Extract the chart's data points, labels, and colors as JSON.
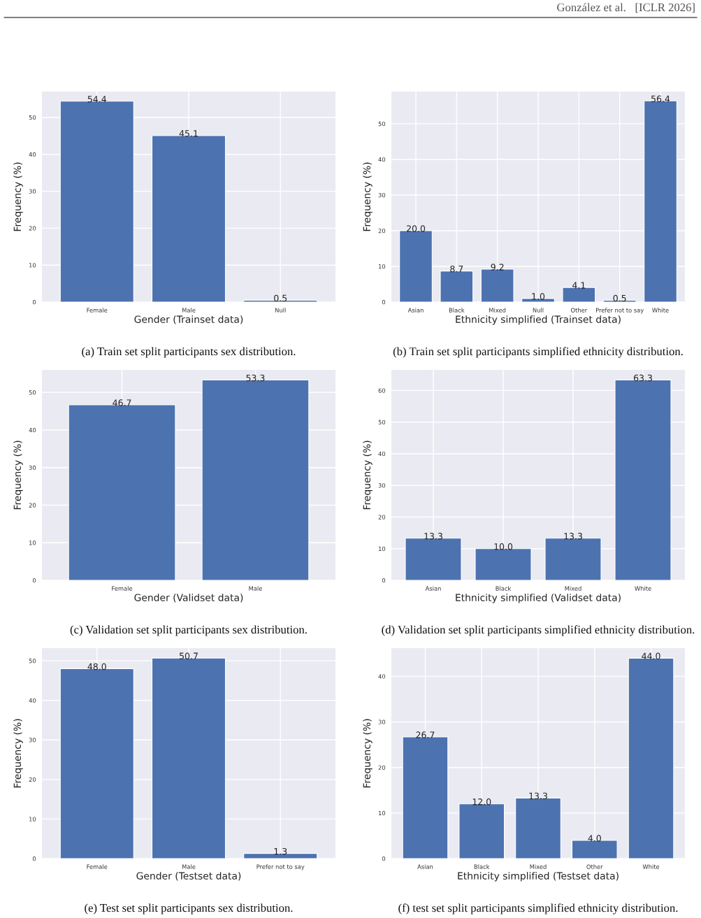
{
  "chart_data": [
    {
      "type": "bar",
      "xlabel": "Gender (Trainset data)",
      "ylabel": "Frequency (%)",
      "categories": [
        "Female",
        "Male",
        "Null"
      ],
      "values": [
        54.4,
        45.1,
        0.5
      ],
      "value_labels": [
        "54.4",
        "45.1",
        "0.5"
      ],
      "color": "#4c72b0",
      "ylim": [
        0,
        57
      ],
      "yticks": [
        0,
        10,
        20,
        30,
        40,
        50
      ],
      "grid": true,
      "annotations": [
        "(a) Train set split participants sex distribution."
      ]
    },
    {
      "type": "bar",
      "xlabel": "Ethnicity simplified (Trainset data)",
      "ylabel": "Frequency (%)",
      "categories": [
        "Asian",
        "Black",
        "Mixed",
        "Null",
        "Other",
        "Prefer not to say",
        "White"
      ],
      "values": [
        20.0,
        8.7,
        9.2,
        1.0,
        4.1,
        0.5,
        56.4
      ],
      "value_labels": [
        "20.0",
        "8.7",
        "9.2",
        "1.0",
        "4.1",
        "0.5",
        "56.4"
      ],
      "color": "#4c72b0",
      "ylim": [
        0,
        59
      ],
      "yticks": [
        0,
        10,
        20,
        30,
        40,
        50
      ],
      "grid": true,
      "annotations": [
        "(b) Train set split participants simplified ethnicity distribution.",
        "González et al.   [ICLR 2026]"
      ]
    },
    {
      "type": "bar",
      "xlabel": "Gender (Validset data)",
      "ylabel": "Frequency (%)",
      "categories": [
        "Female",
        "Male"
      ],
      "values": [
        46.7,
        53.3
      ],
      "value_labels": [
        "46.7",
        "53.3"
      ],
      "color": "#4c72b0",
      "ylim": [
        0,
        56
      ],
      "yticks": [
        0,
        10,
        20,
        30,
        40,
        50
      ],
      "grid": true,
      "annotations": [
        "(c) Validation set split participants sex distribution."
      ]
    },
    {
      "type": "bar",
      "xlabel": "Ethnicity simplified (Validset data)",
      "ylabel": "Frequency (%)",
      "categories": [
        "Asian",
        "Black",
        "Mixed",
        "White"
      ],
      "values": [
        13.3,
        10.0,
        13.3,
        63.3
      ],
      "value_labels": [
        "13.3",
        "10.0",
        "13.3",
        "63.3"
      ],
      "color": "#4c72b0",
      "ylim": [
        0,
        66.5
      ],
      "yticks": [
        0,
        10,
        20,
        30,
        40,
        50,
        60
      ],
      "grid": true,
      "annotations": [
        "(d) Validation set split participants simplified ethnicity distribution."
      ]
    },
    {
      "type": "bar",
      "xlabel": "Gender (Testset data)",
      "ylabel": "Frequency (%)",
      "categories": [
        "Female",
        "Male",
        "Prefer not to say"
      ],
      "values": [
        48.0,
        50.7,
        1.3
      ],
      "value_labels": [
        "48.0",
        "50.7",
        "1.3"
      ],
      "color": "#4c72b0",
      "ylim": [
        0,
        53.2
      ],
      "yticks": [
        0,
        10,
        20,
        30,
        40,
        50
      ],
      "grid": true,
      "annotations": [
        "(e) Test set split participants sex distribution."
      ]
    },
    {
      "type": "bar",
      "xlabel": "Ethnicity simplified (Testset data)",
      "ylabel": "Frequency (%)",
      "categories": [
        "Asian",
        "Black",
        "Mixed",
        "Other",
        "White"
      ],
      "values": [
        26.7,
        12.0,
        13.3,
        4.0,
        44.0
      ],
      "value_labels": [
        "26.7",
        "12.0",
        "13.3",
        "4.0",
        "44.0"
      ],
      "color": "#4c72b0",
      "ylim": [
        0,
        46.2
      ],
      "yticks": [
        0,
        10,
        20,
        30,
        40
      ],
      "grid": true,
      "annotations": [
        "(f) test set split participants simplified ethnicity distribution."
      ]
    }
  ]
}
